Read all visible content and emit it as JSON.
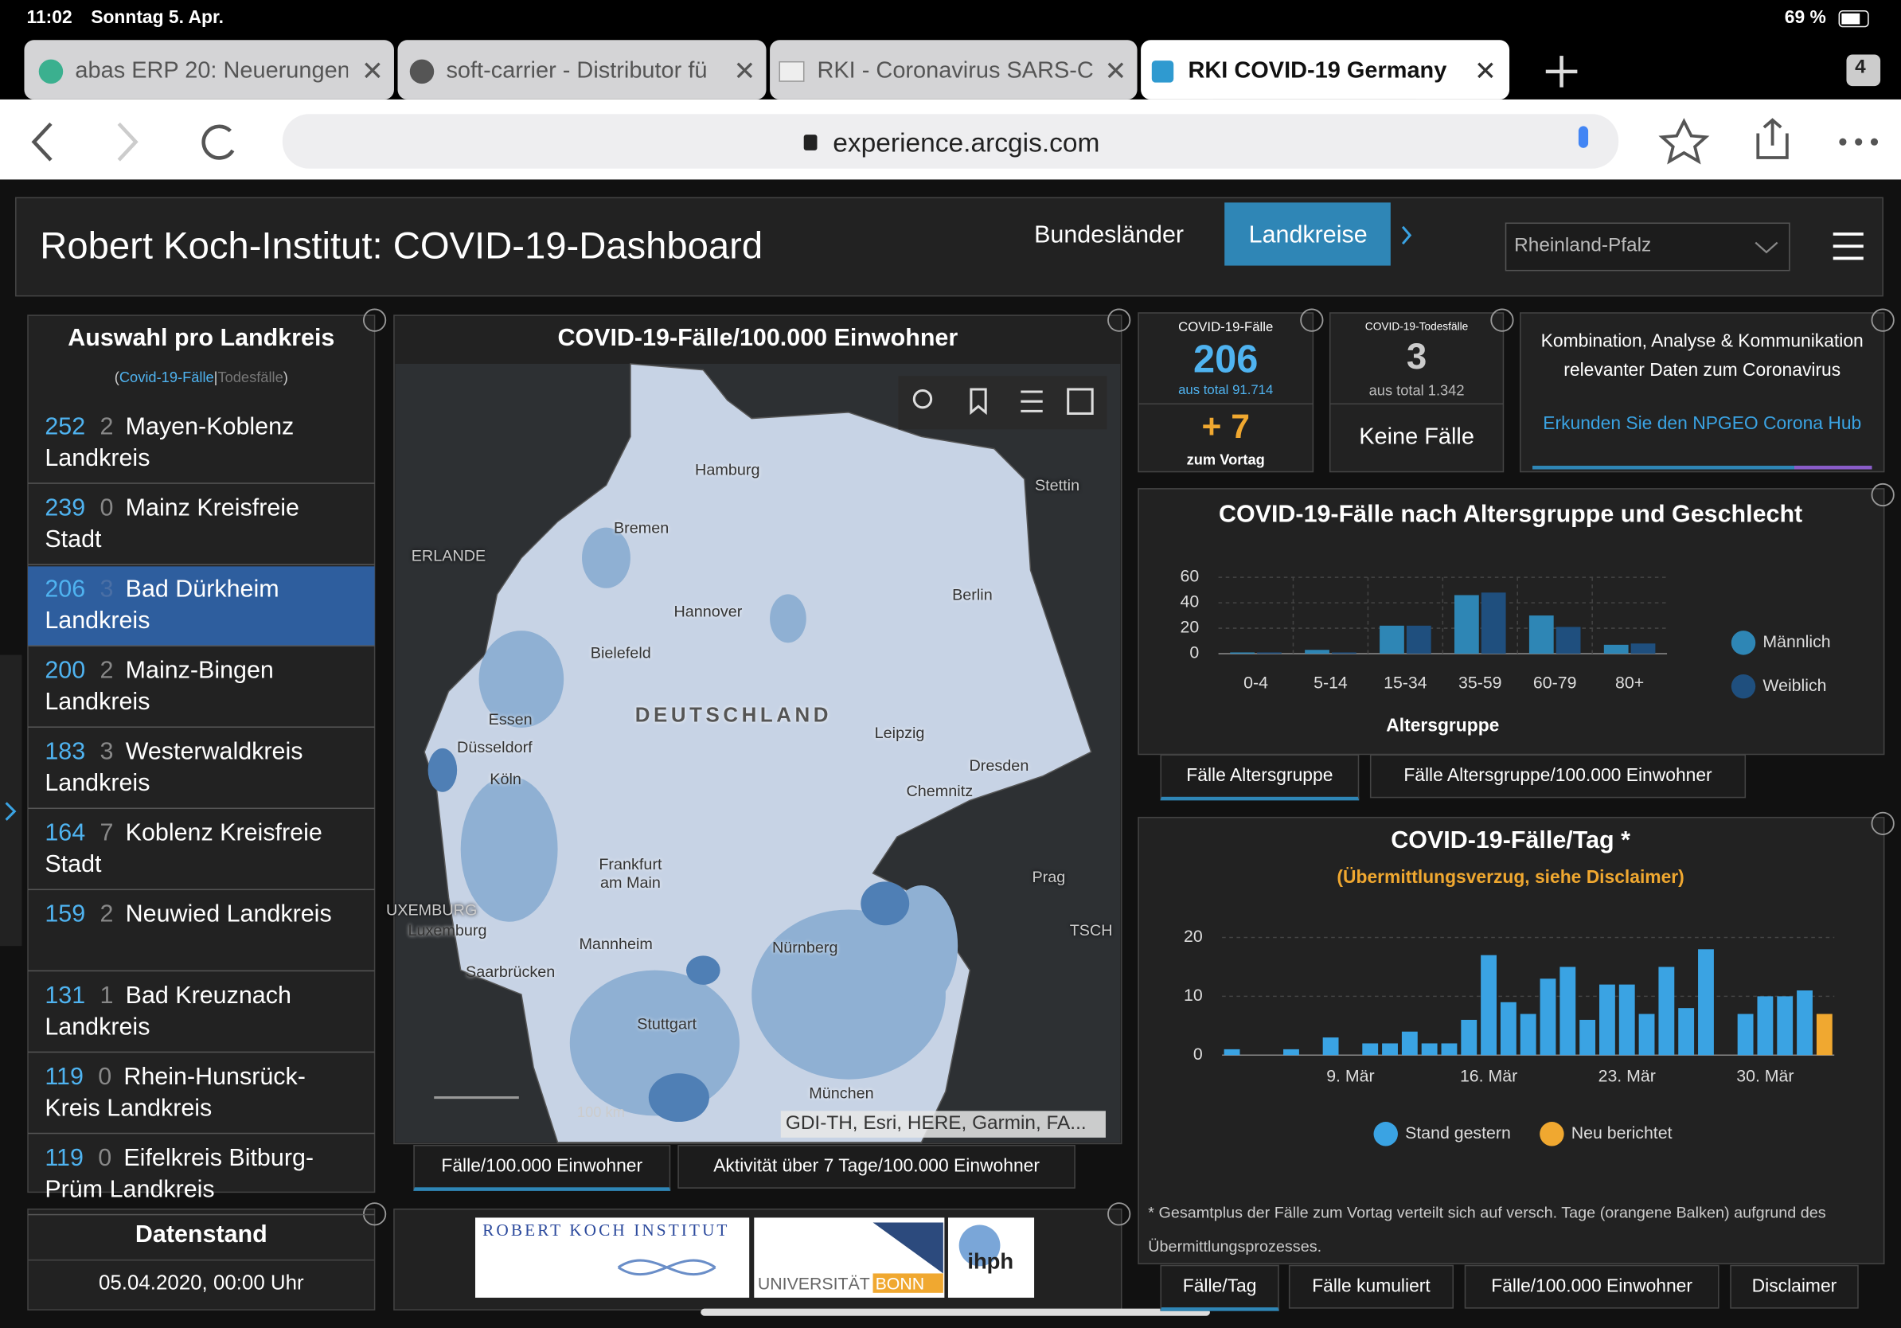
{
  "status_bar": {
    "time": "11:02",
    "date": "Sonntag 5. Apr.",
    "battery": "69 %"
  },
  "tabs": [
    "abas ERP 20: Neuerungen",
    "soft-carrier - Distributor fü",
    "RKI - Coronavirus SARS-C",
    "RKI COVID-19 Germany"
  ],
  "tab_count": "4",
  "url": "experience.arcgis.com",
  "header": {
    "title": "Robert Koch-Institut: COVID-19-Dashboard",
    "nav": [
      "Bundesländer",
      "Landkreise"
    ],
    "dropdown": "Rheinland-Pfalz"
  },
  "list": {
    "title": "Auswahl pro Landkreis",
    "subtitle": [
      "(",
      "Covid-19-Fälle",
      "|",
      "Todesfälle",
      ")"
    ],
    "items": [
      {
        "cases": 252,
        "deaths": 2,
        "name": "Mayen-Koblenz Landkreis"
      },
      {
        "cases": 239,
        "deaths": 0,
        "name": "Mainz Kreisfreie Stadt"
      },
      {
        "cases": 206,
        "deaths": 3,
        "name": "Bad Dürkheim Landkreis"
      },
      {
        "cases": 200,
        "deaths": 2,
        "name": "Mainz-Bingen Landkreis"
      },
      {
        "cases": 183,
        "deaths": 3,
        "name": "Westerwaldkreis Landkreis"
      },
      {
        "cases": 164,
        "deaths": 7,
        "name": "Koblenz Kreisfreie Stadt"
      },
      {
        "cases": 159,
        "deaths": 2,
        "name": "Neuwied Landkreis"
      },
      {
        "cases": 131,
        "deaths": 1,
        "name": "Bad Kreuznach Landkreis"
      },
      {
        "cases": 119,
        "deaths": 0,
        "name": "Rhein-Hunsrück-Kreis Landkreis"
      },
      {
        "cases": 119,
        "deaths": 0,
        "name": "Eifelkreis Bitburg-Prüm Landkreis"
      }
    ]
  },
  "datenstand": {
    "title": "Datenstand",
    "value": "05.04.2020, 00:00 Uhr"
  },
  "map": {
    "title": "COVID-19-Fälle/100.000 Einwohner",
    "labels": [
      "Hamburg",
      "Stettin",
      "Bremen",
      "ERLANDE",
      "Hannover",
      "Berlin",
      "Bielefeld",
      "DEUTSCHLAND",
      "Essen",
      "Düsseldorf",
      "Köln",
      "Leipzig",
      "Dresden",
      "Chemnitz",
      "Frankfurt am Main",
      "Prag",
      "UXEMBURG",
      "Luxemburg",
      "TSCH",
      "Mannheim",
      "Nürnberg",
      "Saarbrücken",
      "Stuttgart",
      "München"
    ],
    "scale": "100 km",
    "attribution": "GDI-TH, Esri, HERE, Garmin, FA...",
    "tabs": [
      "Fälle/100.000 Einwohner",
      "Aktivität über 7 Tage/100.000 Einwohner"
    ]
  },
  "logos": {
    "rki": "ROBERT KOCH INSTITUT",
    "uni": "UNIVERSITÄT",
    "bonn": "BONN",
    "ihph": "ihph"
  },
  "kpi_cases": {
    "title": "COVID-19-Fälle",
    "value": 206,
    "total": "aus total 91.714",
    "delta": "+ 7",
    "delta_label": "zum Vortag"
  },
  "kpi_deaths": {
    "title": "COVID-19-Todesfälle",
    "value": 3,
    "total": "aus total 1.342",
    "delta_label": "Keine Fälle"
  },
  "info": {
    "text": "Kombination, Analyse & Kommunikation relevanter Daten zum Coronavirus",
    "link": "Erkunden Sie den NPGEO Corona Hub"
  },
  "age_chart": {
    "type": "bar",
    "title": "COVID-19-Fälle nach Altersgruppe und Geschlecht",
    "x_label": "Altersgruppe",
    "categories": [
      "0-4",
      "5-14",
      "15-34",
      "35-59",
      "60-79",
      "80+"
    ],
    "series": [
      {
        "name": "Männlich",
        "color": "#2e86b5",
        "values": [
          1,
          3,
          22,
          46,
          30,
          7
        ]
      },
      {
        "name": "Weiblich",
        "color": "#1f4f7e",
        "values": [
          1,
          1,
          22,
          48,
          21,
          8
        ]
      }
    ],
    "ylim": [
      0,
      60
    ],
    "yticks": [
      0,
      20,
      40,
      60
    ],
    "grid": true,
    "tabs": [
      "Fälle Altersgruppe",
      "Fälle Altersgruppe/100.000 Einwohner"
    ]
  },
  "daily_chart": {
    "type": "bar",
    "title": "COVID-19-Fälle/Tag *",
    "subtitle": "(Übermittlungsverzug, siehe Disclaimer)",
    "categories": [
      null,
      null,
      null,
      null,
      null,
      null,
      "9. Mär",
      null,
      null,
      null,
      null,
      null,
      null,
      "16. Mär",
      null,
      null,
      null,
      null,
      null,
      null,
      "23. Mär",
      null,
      null,
      null,
      null,
      null,
      null,
      "30. Mär",
      null,
      null,
      null
    ],
    "series": [
      {
        "name": "Stand gestern",
        "color": "#3aa3e3",
        "values": [
          1,
          0,
          0,
          1,
          0,
          3,
          0,
          2,
          2,
          4,
          2,
          2,
          6,
          17,
          9,
          7,
          13,
          15,
          6,
          12,
          12,
          7,
          15,
          8,
          18,
          0,
          7,
          10,
          10,
          11,
          0
        ]
      },
      {
        "name": "Neu berichtet",
        "color": "#f0a830",
        "values": [
          0,
          0,
          0,
          0,
          0,
          0,
          0,
          0,
          0,
          0,
          0,
          0,
          0,
          0,
          0,
          0,
          0,
          0,
          0,
          0,
          0,
          0,
          0,
          0,
          0,
          0,
          0,
          0,
          0,
          0,
          7
        ]
      }
    ],
    "ylim": [
      0,
      20
    ],
    "yticks": [
      0,
      10,
      20
    ],
    "grid": true,
    "footnote": "* Gesamtplus der Fälle zum Vortag verteilt sich auf versch. Tage (orangene Balken) aufgrund des Übermittlungsprozesses.",
    "tabs": [
      "Fälle/Tag",
      "Fälle kumuliert",
      "Fälle/100.000 Einwohner",
      "Disclaimer"
    ]
  }
}
